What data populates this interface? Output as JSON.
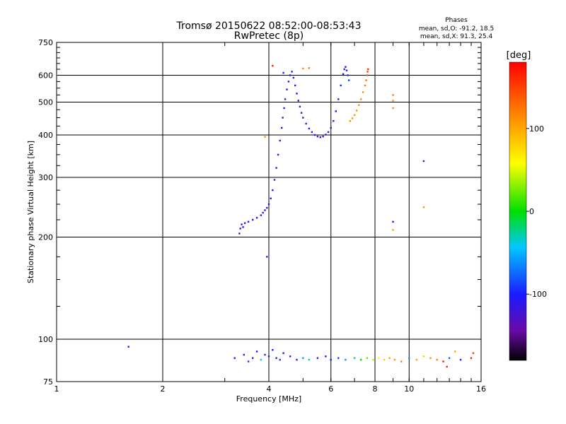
{
  "chart_data": {
    "type": "scatter",
    "title": "Tromsø 20150622 08:52:00-08:53:43",
    "subtitle": "RwPretec (8p)",
    "xlabel": "Frequency [MHz]",
    "ylabel": "Stationary phase Virtual Height [km]",
    "xscale": "log",
    "yscale": "log",
    "xlim": [
      1,
      16
    ],
    "ylim": [
      75,
      750
    ],
    "xticks": [
      1,
      2,
      4,
      6,
      8,
      10,
      16
    ],
    "yticks": [
      75,
      100,
      200,
      300,
      400,
      500,
      600,
      750
    ],
    "grid": true,
    "stats": {
      "heading": "Phases",
      "line_o": "mean, sd,O: -91.2, 18.5",
      "line_x": "mean, sd,X:  91.3, 25.4"
    },
    "colorbar": {
      "unit": "[deg]",
      "range": [
        -180,
        180
      ],
      "tick_values": [
        100,
        0,
        -100
      ],
      "tick_labels": [
        "100",
        "0",
        "-100"
      ]
    },
    "series": [
      {
        "mode": "O",
        "points": [
          [
            3.3,
            205,
            -110
          ],
          [
            3.32,
            212,
            -112
          ],
          [
            3.35,
            218,
            -108
          ],
          [
            3.38,
            214,
            -115
          ],
          [
            3.42,
            220,
            -110
          ],
          [
            3.5,
            222,
            -112
          ],
          [
            3.6,
            225,
            -110
          ],
          [
            3.7,
            228,
            -108
          ],
          [
            3.8,
            232,
            -112
          ],
          [
            3.85,
            236,
            -110
          ],
          [
            3.9,
            240,
            -114
          ],
          [
            3.95,
            244,
            -110
          ],
          [
            4.0,
            250,
            -112
          ],
          [
            4.05,
            260,
            -110
          ],
          [
            4.1,
            275,
            -108
          ],
          [
            4.15,
            295,
            -112
          ],
          [
            4.2,
            320,
            -110
          ],
          [
            4.25,
            350,
            -112
          ],
          [
            4.3,
            385,
            -108
          ],
          [
            4.35,
            420,
            -110
          ],
          [
            4.38,
            450,
            -112
          ],
          [
            4.42,
            480,
            -110
          ],
          [
            4.45,
            510,
            -108
          ],
          [
            4.5,
            545,
            -112
          ],
          [
            4.55,
            575,
            -110
          ],
          [
            4.6,
            600,
            -108
          ],
          [
            4.65,
            615,
            -110
          ],
          [
            4.7,
            590,
            -112
          ],
          [
            4.75,
            560,
            -110
          ],
          [
            4.8,
            530,
            -108
          ],
          [
            4.85,
            505,
            -112
          ],
          [
            4.9,
            485,
            -110
          ],
          [
            4.95,
            465,
            -108
          ],
          [
            5.0,
            450,
            -112
          ],
          [
            5.1,
            432,
            -110
          ],
          [
            5.2,
            418,
            -108
          ],
          [
            5.3,
            408,
            -112
          ],
          [
            5.4,
            400,
            -110
          ],
          [
            5.5,
            396,
            -108
          ],
          [
            5.6,
            394,
            -112
          ],
          [
            5.7,
            396,
            -110
          ],
          [
            5.8,
            401,
            -108
          ],
          [
            5.9,
            408,
            -112
          ],
          [
            6.0,
            420,
            -110
          ],
          [
            6.1,
            440,
            -108
          ],
          [
            6.2,
            470,
            -112
          ],
          [
            6.3,
            510,
            -110
          ],
          [
            6.4,
            560,
            -108
          ],
          [
            6.5,
            605,
            -112
          ],
          [
            6.55,
            625,
            -110
          ],
          [
            6.6,
            635,
            -105
          ],
          [
            6.65,
            620,
            -100
          ],
          [
            6.7,
            600,
            -95
          ],
          [
            6.75,
            580,
            -90
          ],
          [
            3.95,
            175,
            -105
          ],
          [
            4.4,
            610,
            -100
          ]
        ]
      },
      {
        "mode": "X",
        "points": [
          [
            6.8,
            440,
            110
          ],
          [
            6.9,
            448,
            112
          ],
          [
            7.0,
            458,
            110
          ],
          [
            7.1,
            472,
            108
          ],
          [
            7.2,
            490,
            112
          ],
          [
            7.3,
            510,
            110
          ],
          [
            7.4,
            535,
            115
          ],
          [
            7.5,
            560,
            120
          ],
          [
            7.55,
            580,
            130
          ],
          [
            7.6,
            600,
            140
          ],
          [
            7.62,
            615,
            150
          ],
          [
            7.65,
            625,
            160
          ],
          [
            9.0,
            525,
            120
          ],
          [
            9.0,
            505,
            110
          ],
          [
            9.0,
            480,
            115
          ],
          [
            9.0,
            222,
            -110
          ],
          [
            9.0,
            210,
            105
          ],
          [
            11.0,
            245,
            110
          ],
          [
            11.0,
            335,
            -100
          ],
          [
            3.9,
            395,
            110
          ],
          [
            4.1,
            640,
            170
          ],
          [
            5.0,
            628,
            115
          ],
          [
            5.2,
            630,
            120
          ]
        ]
      },
      {
        "mode": "echo",
        "points": [
          [
            1.6,
            95,
            -120
          ],
          [
            3.2,
            88,
            -100
          ],
          [
            3.4,
            90,
            -110
          ],
          [
            3.5,
            86,
            -90
          ],
          [
            3.6,
            88,
            -105
          ],
          [
            3.7,
            92,
            -110
          ],
          [
            3.8,
            87,
            -40
          ],
          [
            3.9,
            90,
            -100
          ],
          [
            4.0,
            89,
            -110
          ],
          [
            4.1,
            93,
            -105
          ],
          [
            4.2,
            88,
            -110
          ],
          [
            4.3,
            87,
            -95
          ],
          [
            4.4,
            91,
            -110
          ],
          [
            4.6,
            89,
            -100
          ],
          [
            4.8,
            87,
            -110
          ],
          [
            5.0,
            88,
            -60
          ],
          [
            5.2,
            87,
            -30
          ],
          [
            5.5,
            88,
            -100
          ],
          [
            5.8,
            89,
            -110
          ],
          [
            6.0,
            87,
            -105
          ],
          [
            6.3,
            88,
            -90
          ],
          [
            6.6,
            87,
            -60
          ],
          [
            7.0,
            88,
            -20
          ],
          [
            7.3,
            87,
            0
          ],
          [
            7.6,
            88,
            20
          ],
          [
            7.9,
            87,
            40
          ],
          [
            8.2,
            88,
            60
          ],
          [
            8.5,
            87,
            80
          ],
          [
            8.8,
            88,
            100
          ],
          [
            9.1,
            87,
            110
          ],
          [
            9.5,
            86,
            120
          ],
          [
            10.0,
            88,
            -60
          ],
          [
            10.5,
            87,
            100
          ],
          [
            11.0,
            89,
            40
          ],
          [
            11.5,
            88,
            110
          ],
          [
            12.0,
            87,
            120
          ],
          [
            12.5,
            86,
            170
          ],
          [
            13.0,
            88,
            -80
          ],
          [
            13.5,
            92,
            100
          ],
          [
            14.0,
            87,
            -100
          ],
          [
            15.0,
            88,
            170
          ],
          [
            12.8,
            83,
            170
          ],
          [
            15.2,
            91,
            150
          ]
        ]
      }
    ]
  }
}
